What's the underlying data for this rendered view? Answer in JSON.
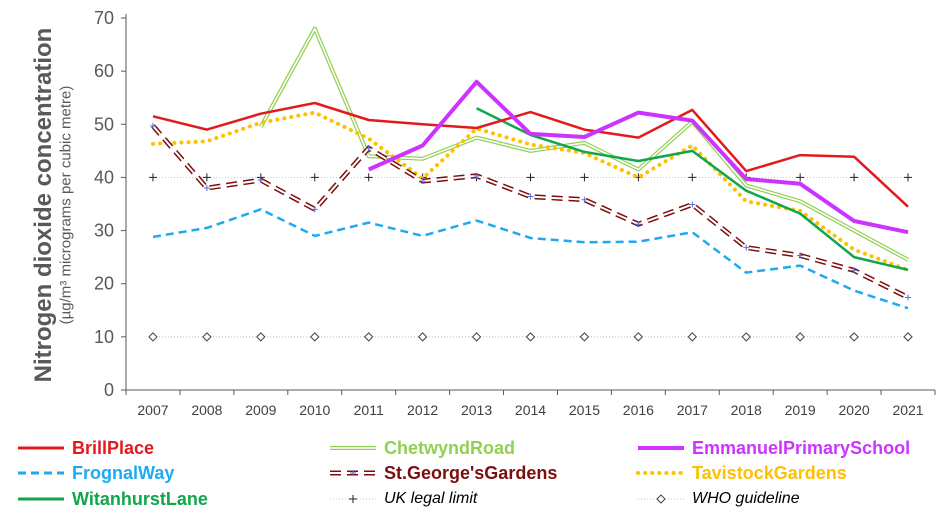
{
  "chart_data": {
    "type": "line",
    "ylabel": "Nitrogen dioxide concentration",
    "ylabel_sub": "(µg/m³ micrograms per cubic metre)",
    "xlabel": "",
    "title": "",
    "ylim": [
      0,
      70
    ],
    "yticks": [
      0,
      10,
      20,
      30,
      40,
      50,
      60,
      70
    ],
    "grid": false,
    "legend_position": "bottom",
    "categories": [
      "2007",
      "2008",
      "2009",
      "2010",
      "2011",
      "2012",
      "2013",
      "2014",
      "2015",
      "2016",
      "2017",
      "2018",
      "2019",
      "2020",
      "2021"
    ],
    "series": [
      {
        "name": "BrillPlace",
        "color": "#e31a1c",
        "style": "solid",
        "values": [
          51.5,
          49,
          52,
          54,
          50.8,
          50,
          49.3,
          52.3,
          49,
          47.5,
          52.7,
          41.2,
          44.2,
          43.9,
          34.5
        ]
      },
      {
        "name": "ChetwyndRoad",
        "color": "#92d050",
        "style": "double",
        "values": [
          null,
          null,
          49.5,
          68,
          44,
          43.5,
          47.5,
          45,
          46.5,
          41.5,
          50.5,
          38.5,
          35.5,
          30,
          24.5
        ]
      },
      {
        "name": "EmmanuelPrimarySchool",
        "color": "#cc33ff",
        "style": "thick",
        "values": [
          null,
          null,
          null,
          null,
          41.5,
          46,
          58,
          48.2,
          47.6,
          52.2,
          50.7,
          39.7,
          38.8,
          31.8,
          29.7
        ]
      },
      {
        "name": "FrognalWay",
        "color": "#1eaaf1",
        "style": "dashed",
        "values": [
          28.8,
          30.5,
          34,
          29,
          31.5,
          29,
          31.9,
          28.6,
          27.8,
          27.9,
          29.7,
          22.1,
          23.4,
          18.7,
          15.4
        ]
      },
      {
        "name": "St.George'sGardens",
        "color": "#7b0e0e",
        "style": "hollowdash",
        "values": [
          49.7,
          38,
          39.5,
          34,
          45.5,
          39.3,
          40.3,
          36.4,
          35.8,
          31.2,
          34.9,
          26.8,
          25.3,
          22.5,
          17.4
        ]
      },
      {
        "name": "TavistockGardens",
        "color": "#ffc000",
        "style": "dotted",
        "values": [
          46.3,
          46.8,
          50.3,
          52.2,
          47.3,
          39.8,
          49.2,
          46.2,
          44.6,
          40,
          46,
          35.5,
          33.7,
          26.4,
          22.6
        ]
      },
      {
        "name": "WitanhurstLane",
        "color": "#10a64a",
        "style": "solid",
        "values": [
          null,
          null,
          null,
          null,
          null,
          null,
          53,
          48,
          44.8,
          43.1,
          45,
          37.5,
          33.2,
          25,
          22.6
        ]
      },
      {
        "name": "UK legal limit",
        "color": "#404040",
        "style": "plus",
        "values": [
          40,
          40,
          40,
          40,
          40,
          40,
          40,
          40,
          40,
          40,
          40,
          40,
          40,
          40,
          40
        ]
      },
      {
        "name": "WHO guideline",
        "color": "#404040",
        "style": "diamond",
        "values": [
          10,
          10,
          10,
          10,
          10,
          10,
          10,
          10,
          10,
          10,
          10,
          10,
          10,
          10,
          10
        ]
      }
    ]
  }
}
